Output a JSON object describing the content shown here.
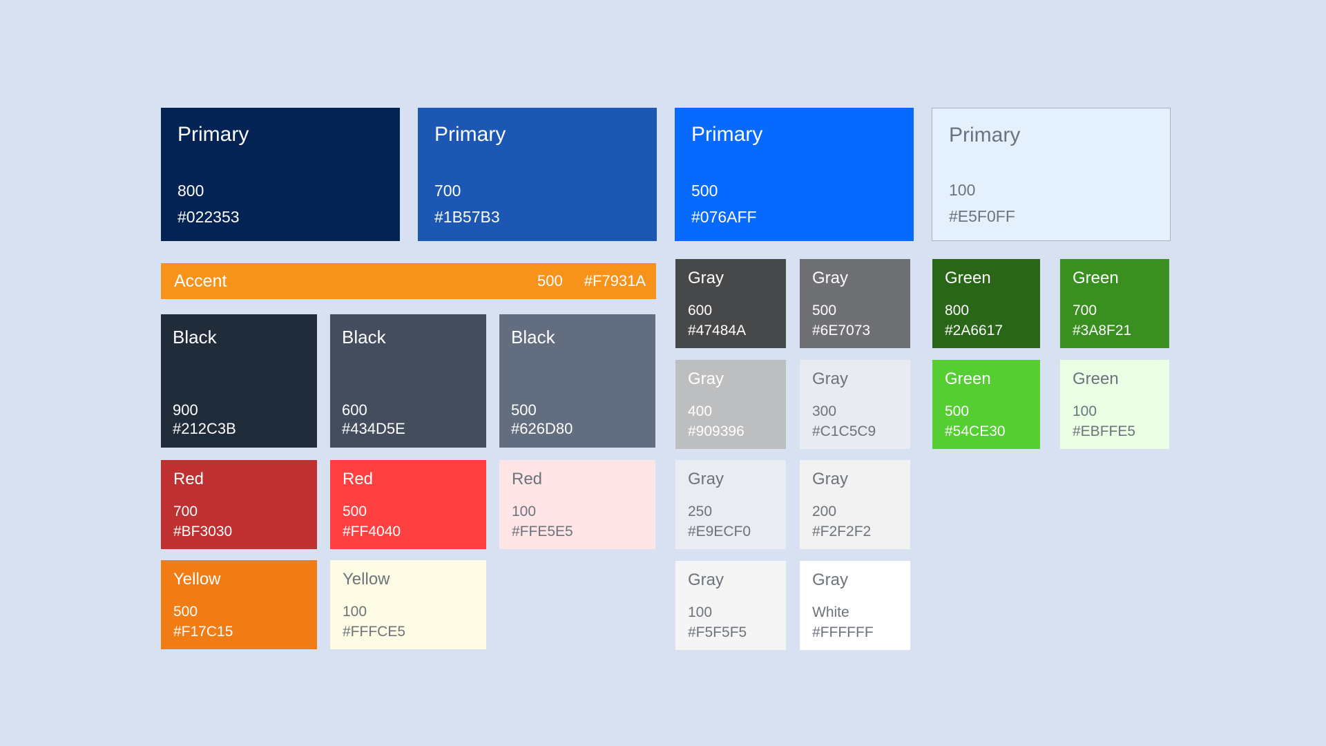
{
  "canvas": {
    "background": "#D7E1F2"
  },
  "primary": [
    {
      "name": "Primary",
      "value": "800",
      "hex": "#022353",
      "bg": "#022353"
    },
    {
      "name": "Primary",
      "value": "700",
      "hex": "#1B57B3",
      "bg": "#1B57B3"
    },
    {
      "name": "Primary",
      "value": "500",
      "hex": "#076AFF",
      "bg": "#076AFF"
    },
    {
      "name": "Primary",
      "value": "100",
      "hex": "#E5F0FF",
      "bg": "#E5F0FF",
      "border": "#A9B1BA"
    }
  ],
  "accent": {
    "name": "Accent",
    "value": "500",
    "hex": "#F7931A",
    "bg": "#F7931A"
  },
  "black": [
    {
      "name": "Black",
      "value": "900",
      "hex": "#212C3B",
      "bg": "#212C3B"
    },
    {
      "name": "Black",
      "value": "600",
      "hex": "#434D5E",
      "bg": "#434D5E"
    },
    {
      "name": "Black",
      "value": "500",
      "hex": "#626D80",
      "bg": "#626D80"
    }
  ],
  "red": [
    {
      "name": "Red",
      "value": "700",
      "hex": "#BF3030",
      "bg": "#BF3030"
    },
    {
      "name": "Red",
      "value": "500",
      "hex": "#FF4040",
      "bg": "#FF4040"
    },
    {
      "name": "Red",
      "value": "100",
      "hex": "#FFE5E5",
      "bg": "#FFE5E5"
    }
  ],
  "yellow": [
    {
      "name": "Yellow",
      "value": "500",
      "hex": "#F17C15",
      "bg": "#F17C15"
    },
    {
      "name": "Yellow",
      "value": "100",
      "hex": "#FFFCE5",
      "bg": "#FFFCE5"
    }
  ],
  "gray": [
    {
      "name": "Gray",
      "value": "600",
      "hex": "#47484A",
      "bg": "#47484A"
    },
    {
      "name": "Gray",
      "value": "500",
      "hex": "#6E7073",
      "bg": "#6E7073"
    },
    {
      "name": "Gray",
      "value": "400",
      "hex": "#909396",
      "bg": "#BDBEC0"
    },
    {
      "name": "Gray",
      "value": "300",
      "hex": "#C1C5C9",
      "bg": "#E8EBEF"
    },
    {
      "name": "Gray",
      "value": "250",
      "hex": "#E9ECF0",
      "bg": "#E9ECF0"
    },
    {
      "name": "Gray",
      "value": "200",
      "hex": "#F2F2F2",
      "bg": "#F2F2F2"
    },
    {
      "name": "Gray",
      "value": "100",
      "hex": "#F5F5F5",
      "bg": "#F5F5F5"
    },
    {
      "name": "Gray",
      "value": "White",
      "hex": "#FFFFFF",
      "bg": "#FFFFFF"
    }
  ],
  "green": [
    {
      "name": "Green",
      "value": "800",
      "hex": "#2A6617",
      "bg": "#2A6617"
    },
    {
      "name": "Green",
      "value": "700",
      "hex": "#3A8F21",
      "bg": "#3A8F21"
    },
    {
      "name": "Green",
      "value": "500",
      "hex": "#54CE30",
      "bg": "#54CE30"
    },
    {
      "name": "Green",
      "value": "100",
      "hex": "#EBFFE5",
      "bg": "#EBFFE5"
    }
  ]
}
